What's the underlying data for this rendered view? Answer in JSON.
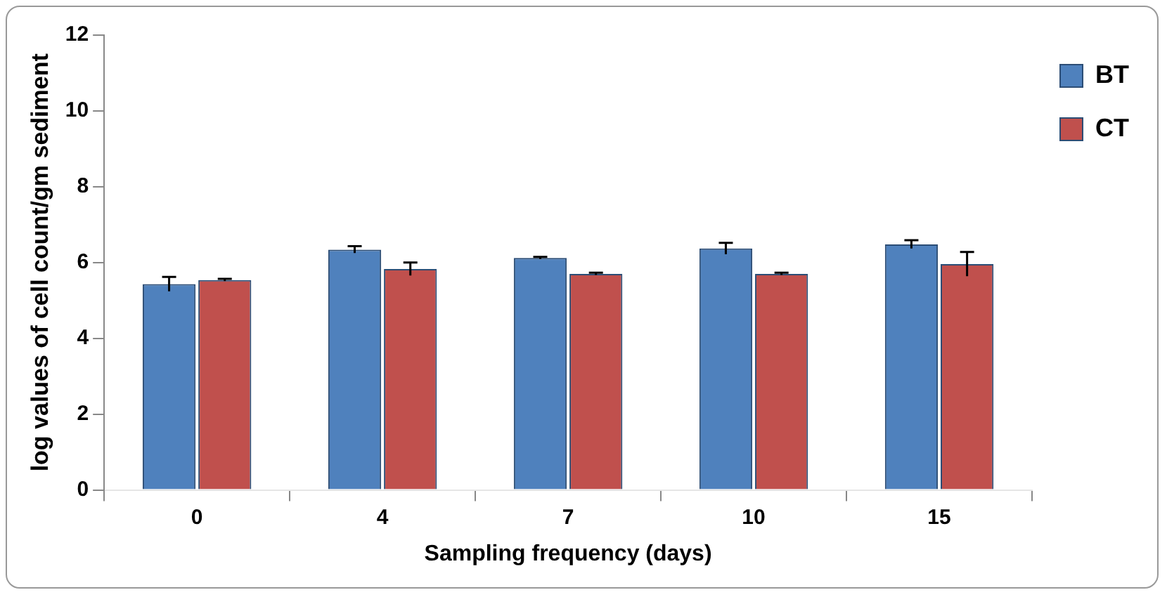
{
  "chart_data": {
    "type": "bar",
    "xlabel": "Sampling frequency (days)",
    "ylabel": "log values of cell count/gm sediment",
    "categories": [
      "0",
      "4",
      "7",
      "10",
      "15"
    ],
    "series": [
      {
        "name": "BT",
        "color": "#4f81bd",
        "values": [
          5.43,
          6.34,
          6.12,
          6.37,
          6.48
        ],
        "errors": [
          0.19,
          0.09,
          0.03,
          0.15,
          0.11
        ]
      },
      {
        "name": "CT",
        "color": "#c0504d",
        "values": [
          5.54,
          5.83,
          5.7,
          5.7,
          5.96
        ],
        "errors": [
          0.03,
          0.17,
          0.03,
          0.03,
          0.32
        ]
      }
    ],
    "ylim": [
      0,
      12
    ],
    "yticks": [
      0,
      2,
      4,
      6,
      8,
      10,
      12
    ],
    "grid": false,
    "legend": "top right"
  }
}
